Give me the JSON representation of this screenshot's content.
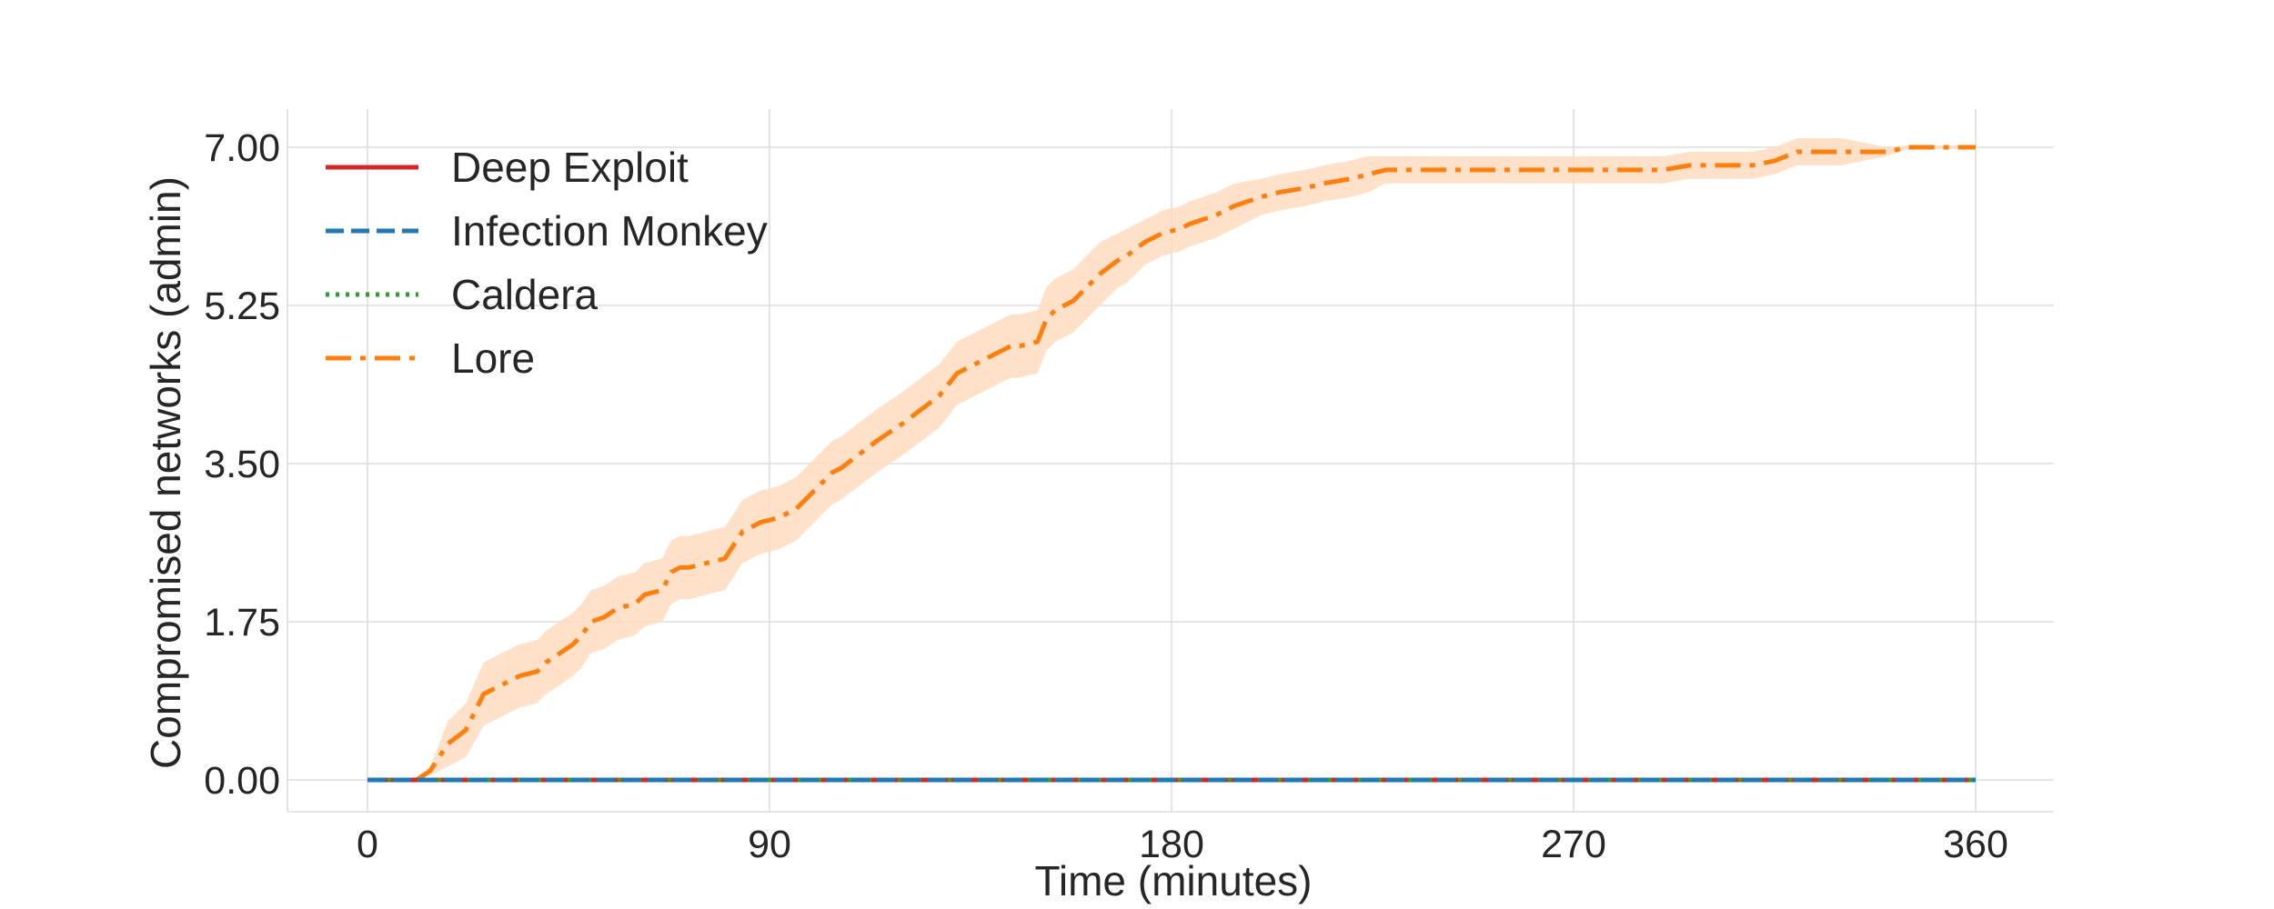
{
  "chart_data": {
    "type": "line",
    "title": "",
    "xlabel": "Time (minutes)",
    "ylabel": "Compromised networks (admin)",
    "xlim": [
      0,
      360
    ],
    "ylim": [
      0,
      7
    ],
    "xticks": [
      0,
      90,
      180,
      270,
      360
    ],
    "xtick_labels": [
      "0",
      "90",
      "180",
      "270",
      "360"
    ],
    "yticks": [
      0,
      1.75,
      3.5,
      5.25,
      7
    ],
    "ytick_labels": [
      "0.00",
      "1.75",
      "3.50",
      "5.25",
      "7.00"
    ],
    "grid": true,
    "legend_position": "top-left",
    "series": [
      {
        "name": "Deep Exploit",
        "color": "#d62728",
        "dash": "solid",
        "x": [
          0,
          360
        ],
        "y": [
          0,
          0
        ]
      },
      {
        "name": "Infection Monkey",
        "color": "#1f77b4",
        "dash": "dashed",
        "x": [
          0,
          360
        ],
        "y": [
          0,
          0
        ]
      },
      {
        "name": "Caldera",
        "color": "#2ca02c",
        "dash": "dotted",
        "x": [
          0,
          360
        ],
        "y": [
          0,
          0
        ]
      },
      {
        "name": "Lore",
        "color": "#ff7f0e",
        "band_color": "#ffdcc0",
        "dash": "dashdot",
        "x": [
          0,
          11,
          14,
          18,
          22,
          26,
          30,
          34,
          38,
          40,
          43,
          46,
          48,
          50,
          53,
          56,
          60,
          62,
          66,
          68,
          70,
          72,
          76,
          80,
          82,
          84,
          88,
          92,
          96,
          98,
          100,
          104,
          106,
          110,
          114,
          117,
          120,
          124,
          128,
          132,
          136,
          140,
          144,
          146,
          150,
          152,
          154,
          158,
          162,
          164,
          168,
          170,
          174,
          176,
          178,
          182,
          184,
          190,
          194,
          200,
          204,
          210,
          214,
          220,
          224,
          228,
          234,
          240,
          260,
          270,
          290,
          296,
          300,
          310,
          315,
          320,
          330,
          335,
          340,
          345,
          360
        ],
        "y": [
          0,
          0,
          0.1,
          0.4,
          0.55,
          0.95,
          1.05,
          1.15,
          1.2,
          1.3,
          1.4,
          1.5,
          1.6,
          1.75,
          1.8,
          1.9,
          1.95,
          2.05,
          2.1,
          2.3,
          2.35,
          2.35,
          2.4,
          2.45,
          2.6,
          2.75,
          2.85,
          2.9,
          3.0,
          3.1,
          3.2,
          3.4,
          3.45,
          3.6,
          3.75,
          3.85,
          3.95,
          4.1,
          4.25,
          4.5,
          4.6,
          4.7,
          4.8,
          4.8,
          4.85,
          5.1,
          5.2,
          5.3,
          5.5,
          5.6,
          5.75,
          5.8,
          5.95,
          6.0,
          6.05,
          6.1,
          6.15,
          6.25,
          6.35,
          6.45,
          6.5,
          6.55,
          6.6,
          6.65,
          6.7,
          6.75,
          6.75,
          6.75,
          6.75,
          6.75,
          6.75,
          6.8,
          6.8,
          6.8,
          6.85,
          6.95,
          6.95,
          6.95,
          6.95,
          7.0,
          7.0
        ],
        "band": [
          0,
          0,
          0.05,
          0.25,
          0.3,
          0.35,
          0.35,
          0.35,
          0.35,
          0.35,
          0.35,
          0.35,
          0.35,
          0.35,
          0.35,
          0.35,
          0.35,
          0.35,
          0.35,
          0.35,
          0.35,
          0.35,
          0.35,
          0.35,
          0.35,
          0.35,
          0.35,
          0.35,
          0.35,
          0.35,
          0.35,
          0.35,
          0.35,
          0.35,
          0.35,
          0.35,
          0.35,
          0.35,
          0.35,
          0.35,
          0.35,
          0.35,
          0.35,
          0.35,
          0.35,
          0.35,
          0.35,
          0.35,
          0.35,
          0.35,
          0.3,
          0.3,
          0.25,
          0.25,
          0.25,
          0.25,
          0.25,
          0.25,
          0.25,
          0.2,
          0.2,
          0.2,
          0.2,
          0.2,
          0.2,
          0.15,
          0.15,
          0.15,
          0.15,
          0.15,
          0.15,
          0.15,
          0.15,
          0.15,
          0.15,
          0.15,
          0.15,
          0.1,
          0.05,
          0.02,
          0.02
        ]
      }
    ]
  }
}
